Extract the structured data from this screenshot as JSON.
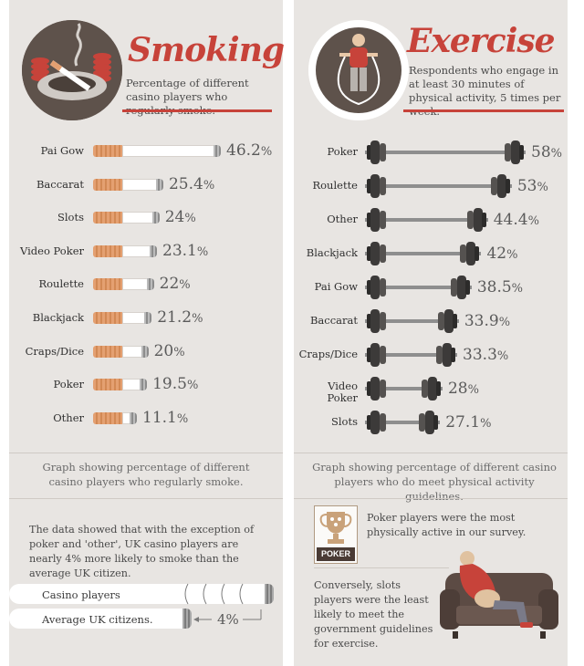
{
  "smoking": {
    "title": "Smoking",
    "subtitle": "Percentage of different casino players who regularly smoke.",
    "caption": "Graph showing percentage of different casino players who regularly smoke.",
    "paragraph": "The data showed that with the exception of poker and 'other', UK casino players are nearly 4% more likely to smoke than the average UK citizen.",
    "comparison": {
      "casino_label": "Casino players",
      "uk_label": "Average UK citizens.",
      "difference": "4%"
    }
  },
  "exercise": {
    "title": "Exercise",
    "subtitle": "Respondents who engage in at least 30 minutes of physical activity, 5 times per week.",
    "caption": "Graph showing percentage of different casino players who do meet physical activity guidelines.",
    "poker_note": "Poker players were the most physically active in our survey.",
    "poker_badge": "POKER",
    "slots_note": "Conversely, slots players were the least likely to meet the government guidelines for exercise."
  },
  "chart_data": [
    {
      "type": "bar",
      "categories": [
        "Pai Gow",
        "Baccarat",
        "Slots",
        "Video Poker",
        "Roulette",
        "Blackjack",
        "Craps/Dice",
        "Poker",
        "Other"
      ],
      "values": [
        46.2,
        25.4,
        24,
        23.1,
        22,
        21.2,
        20,
        19.5,
        11.1
      ],
      "labels": [
        "46.2",
        "25.4",
        "24",
        "23.1",
        "22",
        "21.2",
        "20",
        "19.5",
        "11.1"
      ],
      "unit": "%",
      "title": "Smoking",
      "colors": {
        "filter": "#e4a071",
        "paper": "#ffffff",
        "ash": "#9a9a9a"
      }
    },
    {
      "type": "bar",
      "categories": [
        "Poker",
        "Roulette",
        "Other",
        "Blackjack",
        "Pai Gow",
        "Baccarat",
        "Craps/Dice",
        "Video Poker",
        "Slots"
      ],
      "values": [
        58,
        53,
        44.4,
        42,
        38.5,
        33.9,
        33.3,
        28,
        27.1
      ],
      "labels": [
        "58",
        "53",
        "44.4",
        "42",
        "38.5",
        "33.9",
        "33.3",
        "28",
        "27.1"
      ],
      "unit": "%",
      "title": "Exercise",
      "colors": {
        "bar": "#8e8e8e",
        "plate": "#3c3a39"
      }
    }
  ],
  "colors": {
    "accent": "#c7433a",
    "panel": "#e8e5e2",
    "text": "#3a3a3a"
  }
}
